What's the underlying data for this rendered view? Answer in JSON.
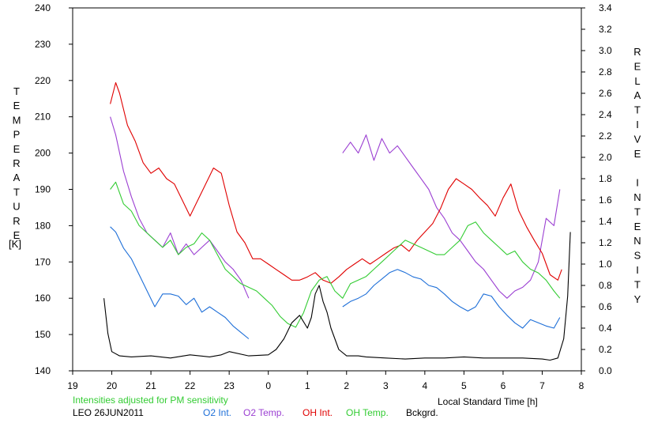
{
  "chart_data": {
    "type": "line",
    "title": "",
    "xlabel": "Local Standard Time [h]",
    "ylabel_left": "TEMPERATURE",
    "ylabel_left_unit": "[K]",
    "ylabel_right": "RELATIVE INTENSITY",
    "x_ticks": [
      "19",
      "20",
      "21",
      "22",
      "23",
      "0",
      "1",
      "2",
      "3",
      "4",
      "5",
      "6",
      "7",
      "8"
    ],
    "y_left_ticks": [
      "140",
      "150",
      "160",
      "170",
      "180",
      "190",
      "200",
      "210",
      "220",
      "230",
      "240"
    ],
    "y_right_ticks": [
      "0.0",
      "0.2",
      "0.4",
      "0.6",
      "0.8",
      "1.0",
      "1.2",
      "1.4",
      "1.6",
      "1.8",
      "2.0",
      "2.2",
      "2.4",
      "2.6",
      "2.8",
      "3.0",
      "3.2",
      "3.4"
    ],
    "xlim": [
      19,
      32
    ],
    "ylim_left": [
      140,
      240
    ],
    "ylim_right": [
      0,
      3.4
    ],
    "grid": false,
    "note": "Intensities adjusted for PM sensitivity",
    "station": "LEO 26JUN2011",
    "series": [
      {
        "name": "O2 Int.",
        "color": "#1e6fd8",
        "axis": "right",
        "x": [
          19.96,
          20.1,
          20.3,
          20.5,
          20.7,
          20.9,
          21.1,
          21.3,
          21.5,
          21.7,
          21.9,
          22.1,
          22.3,
          22.5,
          22.7,
          22.9,
          23.1,
          23.3,
          23.5,
          23.9,
          24.1,
          24.5,
          24.8,
          25.0,
          25.3,
          25.5,
          25.8,
          25.9,
          26.1,
          26.3,
          26.5,
          26.7,
          26.9,
          27.1,
          27.3,
          27.5,
          27.7,
          27.9,
          28.1,
          28.3,
          28.5,
          28.7,
          28.9,
          29.1,
          29.3,
          29.5,
          29.7,
          29.9,
          30.1,
          30.3,
          30.5,
          30.7,
          30.9,
          31.1,
          31.3,
          31.45
        ],
        "y": [
          1.35,
          1.3,
          1.15,
          1.05,
          0.9,
          0.75,
          0.6,
          0.72,
          0.72,
          0.7,
          0.62,
          0.68,
          0.55,
          0.6,
          0.55,
          0.5,
          0.42,
          0.36,
          0.3,
          null,
          null,
          null,
          null,
          null,
          null,
          null,
          null,
          0.6,
          0.65,
          0.68,
          0.72,
          0.8,
          0.86,
          0.92,
          0.95,
          0.92,
          0.88,
          0.86,
          0.8,
          0.78,
          0.72,
          0.65,
          0.6,
          0.56,
          0.6,
          0.72,
          0.7,
          0.6,
          0.52,
          0.45,
          0.4,
          0.48,
          0.45,
          0.42,
          0.4,
          0.5
        ]
      },
      {
        "name": "O2 Temp.",
        "color": "#9b3fd2",
        "axis": "left",
        "x": [
          19.96,
          20.1,
          20.3,
          20.5,
          20.7,
          20.9,
          21.1,
          21.3,
          21.5,
          21.7,
          21.9,
          22.1,
          22.3,
          22.5,
          22.7,
          22.9,
          23.1,
          23.3,
          23.5,
          23.9,
          24.1,
          24.5,
          24.8,
          25.0,
          25.3,
          25.5,
          25.8,
          25.9,
          26.1,
          26.3,
          26.5,
          26.7,
          26.9,
          27.1,
          27.3,
          27.5,
          27.7,
          27.9,
          28.1,
          28.3,
          28.5,
          28.7,
          28.9,
          29.1,
          29.3,
          29.5,
          29.7,
          29.9,
          30.1,
          30.3,
          30.5,
          30.7,
          30.9,
          31.1,
          31.3,
          31.45
        ],
        "y": [
          210,
          205,
          195,
          188,
          182,
          178,
          176,
          174,
          178,
          172,
          175,
          172,
          174,
          176,
          173,
          170,
          168,
          165,
          160,
          null,
          null,
          null,
          null,
          null,
          null,
          null,
          null,
          200,
          203,
          200,
          205,
          198,
          204,
          200,
          202,
          199,
          196,
          193,
          190,
          185,
          182,
          178,
          176,
          173,
          170,
          168,
          165,
          162,
          160,
          162,
          163,
          165,
          170,
          182,
          180,
          190
        ]
      },
      {
        "name": "OH Int.",
        "color": "#e00000",
        "axis": "right",
        "x": [
          19.96,
          20.1,
          20.2,
          20.4,
          20.6,
          20.8,
          21.0,
          21.2,
          21.4,
          21.6,
          21.8,
          22.0,
          22.2,
          22.4,
          22.6,
          22.8,
          23.0,
          23.2,
          23.4,
          23.6,
          23.8,
          24.0,
          24.2,
          24.4,
          24.6,
          24.8,
          25.0,
          25.2,
          25.4,
          25.6,
          25.8,
          26.0,
          26.2,
          26.4,
          26.6,
          26.8,
          27.0,
          27.2,
          27.4,
          27.6,
          27.8,
          28.0,
          28.2,
          28.4,
          28.6,
          28.8,
          29.0,
          29.2,
          29.4,
          29.6,
          29.8,
          30.0,
          30.2,
          30.4,
          30.6,
          30.8,
          31.0,
          31.2,
          31.4,
          31.5
        ],
        "y": [
          2.5,
          2.7,
          2.6,
          2.3,
          2.15,
          1.95,
          1.85,
          1.9,
          1.8,
          1.75,
          1.6,
          1.45,
          1.6,
          1.75,
          1.9,
          1.85,
          1.55,
          1.3,
          1.2,
          1.05,
          1.05,
          1.0,
          0.95,
          0.9,
          0.85,
          0.85,
          0.88,
          0.92,
          0.85,
          0.82,
          0.88,
          0.95,
          1.0,
          1.05,
          1.0,
          1.05,
          1.1,
          1.15,
          1.18,
          1.12,
          1.22,
          1.3,
          1.38,
          1.52,
          1.7,
          1.8,
          1.75,
          1.7,
          1.62,
          1.55,
          1.45,
          1.62,
          1.75,
          1.5,
          1.35,
          1.22,
          1.1,
          0.9,
          0.85,
          0.95
        ]
      },
      {
        "name": "OH Temp.",
        "color": "#33cc33",
        "axis": "left",
        "x": [
          19.96,
          20.1,
          20.3,
          20.5,
          20.7,
          20.9,
          21.1,
          21.3,
          21.5,
          21.7,
          21.9,
          22.1,
          22.3,
          22.5,
          22.7,
          22.9,
          23.1,
          23.3,
          23.5,
          23.7,
          23.9,
          24.1,
          24.3,
          24.5,
          24.7,
          24.9,
          25.1,
          25.3,
          25.5,
          25.7,
          25.9,
          26.1,
          26.3,
          26.5,
          26.7,
          26.9,
          27.1,
          27.3,
          27.5,
          27.7,
          27.9,
          28.1,
          28.3,
          28.5,
          28.7,
          28.9,
          29.1,
          29.3,
          29.5,
          29.7,
          29.9,
          30.1,
          30.3,
          30.5,
          30.7,
          30.9,
          31.1,
          31.3,
          31.45
        ],
        "y": [
          190,
          192,
          186,
          184,
          180,
          178,
          176,
          174,
          176,
          172,
          174,
          175,
          178,
          176,
          172,
          168,
          166,
          164,
          163,
          162,
          160,
          158,
          155,
          153,
          152,
          156,
          162,
          165,
          166,
          162,
          160,
          164,
          165,
          166,
          168,
          170,
          172,
          174,
          176,
          175,
          174,
          173,
          172,
          172,
          174,
          176,
          180,
          181,
          178,
          176,
          174,
          172,
          173,
          170,
          168,
          167,
          165,
          162,
          160
        ]
      },
      {
        "name": "Bckgrd.",
        "color": "#000000",
        "axis": "right",
        "x": [
          19.8,
          19.9,
          20.0,
          20.2,
          20.5,
          21.0,
          21.5,
          22.0,
          22.5,
          22.8,
          23.0,
          23.5,
          24.0,
          24.2,
          24.4,
          24.6,
          24.8,
          25.0,
          25.1,
          25.2,
          25.3,
          25.4,
          25.5,
          25.6,
          25.8,
          26.0,
          26.3,
          26.5,
          27.0,
          27.5,
          28.0,
          28.5,
          29.0,
          29.5,
          30.0,
          30.5,
          31.0,
          31.2,
          31.4,
          31.55,
          31.65,
          31.72
        ],
        "y": [
          0.68,
          0.35,
          0.18,
          0.14,
          0.13,
          0.14,
          0.12,
          0.15,
          0.13,
          0.15,
          0.18,
          0.14,
          0.15,
          0.2,
          0.3,
          0.45,
          0.52,
          0.4,
          0.5,
          0.72,
          0.8,
          0.65,
          0.55,
          0.4,
          0.2,
          0.14,
          0.14,
          0.13,
          0.12,
          0.11,
          0.12,
          0.12,
          0.13,
          0.12,
          0.12,
          0.12,
          0.11,
          0.1,
          0.12,
          0.3,
          0.7,
          1.3
        ]
      }
    ]
  }
}
